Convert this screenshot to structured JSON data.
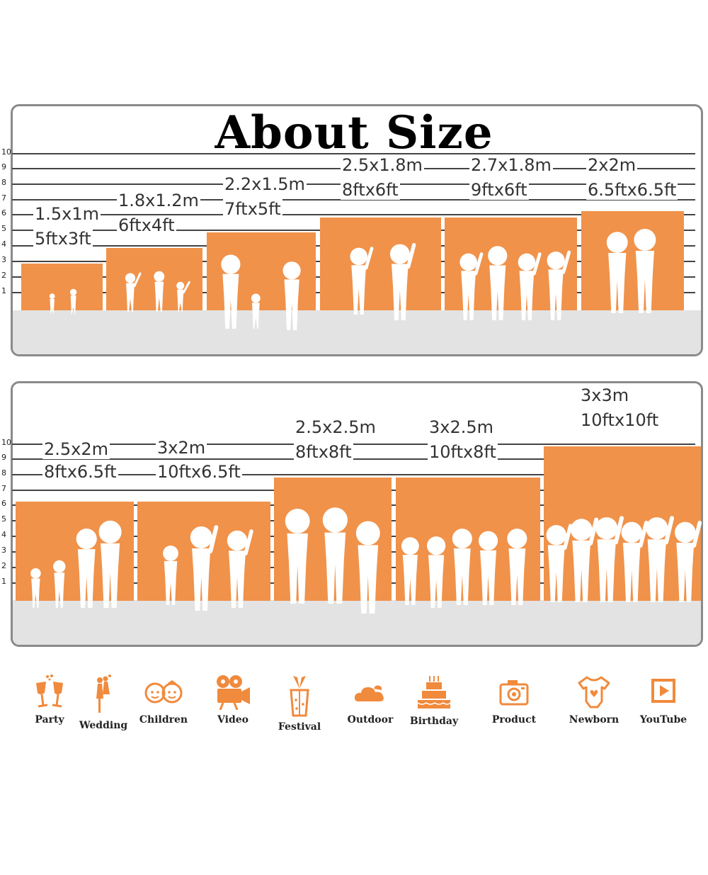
{
  "title": "About Size",
  "scale_ticks": [
    "1",
    "2",
    "3",
    "4",
    "5",
    "6",
    "7",
    "8",
    "9",
    "10"
  ],
  "top_row": [
    {
      "metric": "1.5x1m",
      "imperial": "5ftx3ft",
      "scene": "children-reading-silhouette"
    },
    {
      "metric": "1.8x1.2m",
      "imperial": "6ftx4ft",
      "scene": "children-running-silhouette"
    },
    {
      "metric": "2.2x1.5m",
      "imperial": "7ftx5ft",
      "scene": "family-walking-silhouette"
    },
    {
      "metric": "2.5x1.8m",
      "imperial": "8ftx6ft",
      "scene": "wedding-couple-silhouette"
    },
    {
      "metric": "2.7x1.8m",
      "imperial": "9ftx6ft",
      "scene": "girls-group-silhouette"
    },
    {
      "metric": "2x2m",
      "imperial": "6.5ftx6.5ft",
      "scene": "couple-with-pets-silhouette"
    }
  ],
  "bottom_row": [
    {
      "metric": "2.5x2m",
      "imperial": "8ftx6.5ft",
      "scene": "family-four-silhouette"
    },
    {
      "metric": "3x2m",
      "imperial": "10ftx6.5ft",
      "scene": "family-lifting-child-silhouette"
    },
    {
      "metric": "2.5x2.5m",
      "imperial": "8ftx8ft",
      "scene": "three-men-silhouette"
    },
    {
      "metric": "3x2.5m",
      "imperial": "10ftx8ft",
      "scene": "group-friends-silhouette"
    },
    {
      "metric": "3x3m",
      "imperial": "10ftx10ft",
      "scene": "graduates-silhouette"
    }
  ],
  "uses": [
    {
      "label": "Party",
      "icon": "champagne-glasses-icon"
    },
    {
      "label": "Wedding",
      "icon": "wedding-couple-icon"
    },
    {
      "label": "Children",
      "icon": "children-faces-icon"
    },
    {
      "label": "Video",
      "icon": "movie-camera-icon"
    },
    {
      "label": "Festival",
      "icon": "gift-box-icon"
    },
    {
      "label": "Outdoor",
      "icon": "cloud-icon"
    },
    {
      "label": "Birthday",
      "icon": "birthday-cake-icon"
    },
    {
      "label": "Product",
      "icon": "photo-camera-icon"
    },
    {
      "label": "Newborn",
      "icon": "baby-onesie-icon"
    },
    {
      "label": "YouTube",
      "icon": "play-button-icon"
    }
  ],
  "colors": {
    "backdrop": "#f0924a",
    "icon": "#f08a3c",
    "floor": "#e3e3e3"
  }
}
